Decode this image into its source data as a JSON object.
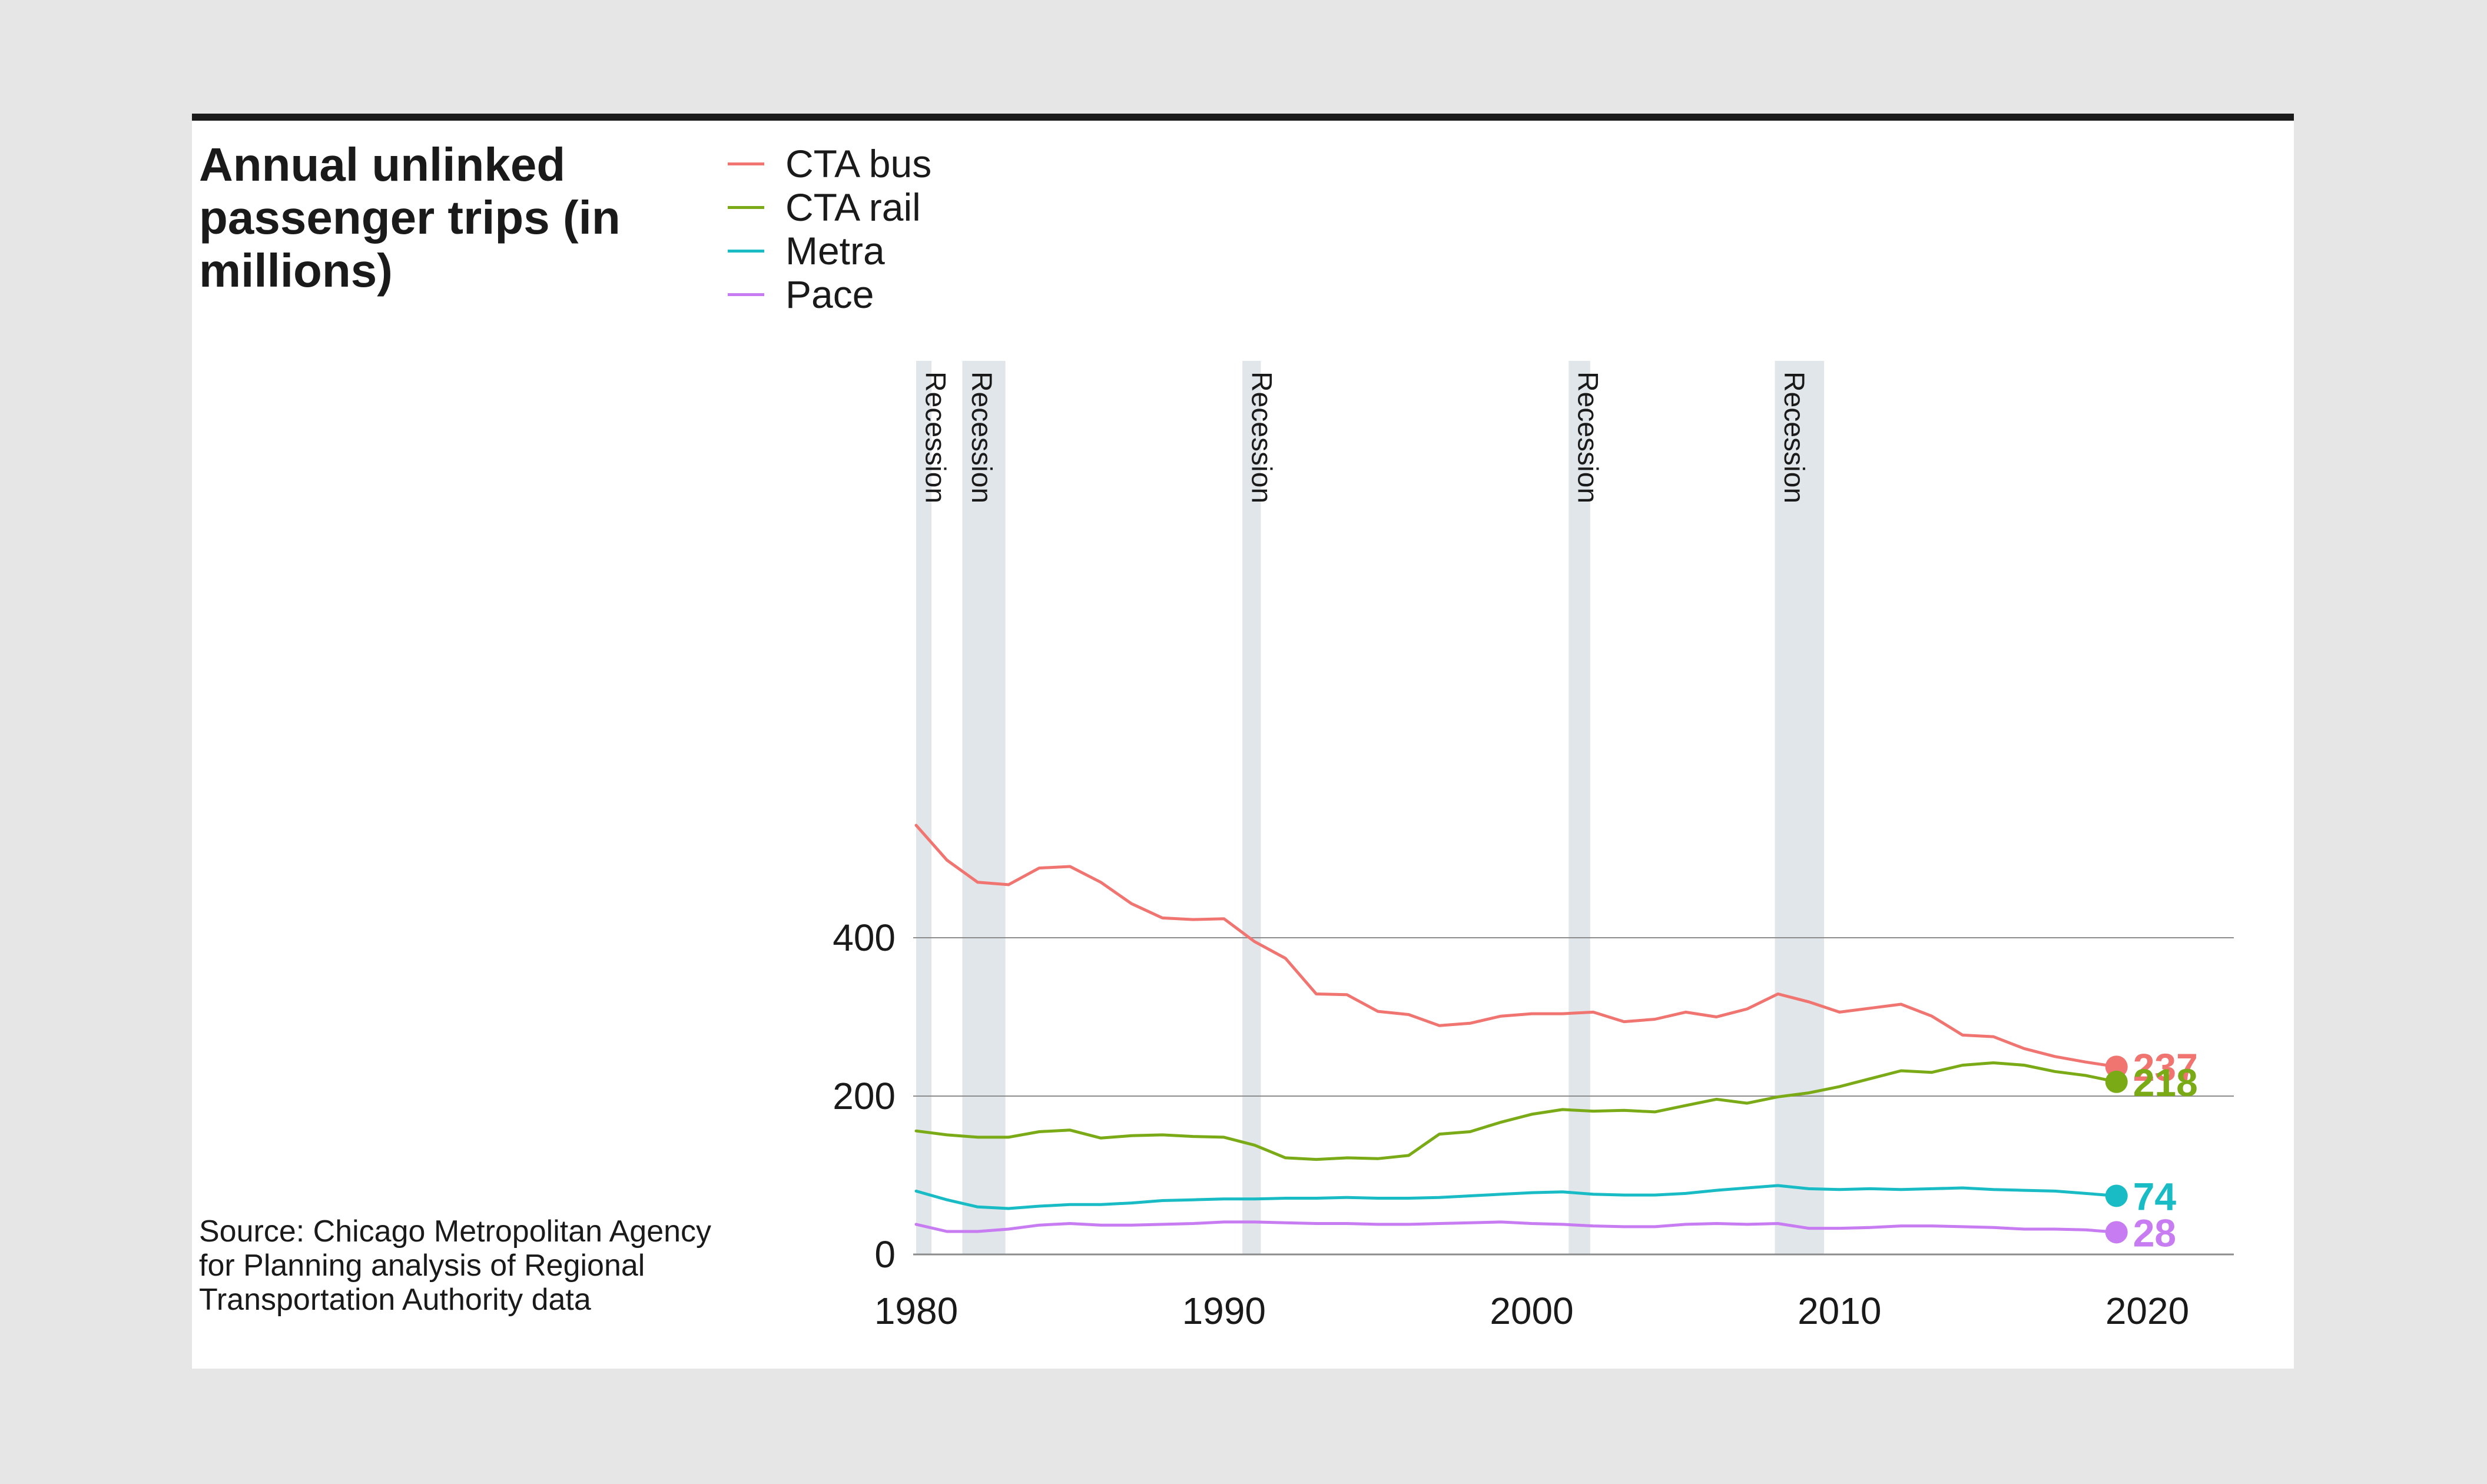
{
  "colors": {
    "CTA bus": "#f07470",
    "CTA rail": "#7aab17",
    "Metra": "#19bcc5",
    "Pace": "#c77cf2",
    "recession": "#e1e6ea",
    "grid": "#8c8c8c",
    "text": "#1a1a1a"
  },
  "chart_data": {
    "type": "line",
    "title": "Annual unlinked passenger trips (in millions)",
    "source": "Source: Chicago Metropolitan Agency for Planning analysis of Regional Transportation Authority data",
    "xlim": [
      1980,
      2020
    ],
    "ylim": [
      0,
      550
    ],
    "yticks": [
      0,
      200,
      400
    ],
    "xticks": [
      1980,
      1990,
      2000,
      2010,
      2020
    ],
    "grid": "horizontal",
    "legend": "top-left",
    "x": [
      1980,
      1981,
      1982,
      1983,
      1984,
      1985,
      1986,
      1987,
      1988,
      1989,
      1990,
      1991,
      1992,
      1993,
      1994,
      1995,
      1996,
      1997,
      1998,
      1999,
      2000,
      2001,
      2002,
      2003,
      2004,
      2005,
      2006,
      2007,
      2008,
      2009,
      2010,
      2011,
      2012,
      2013,
      2014,
      2015,
      2016,
      2017,
      2018,
      2019
    ],
    "series": [
      {
        "name": "CTA bus",
        "values": [
          542,
          498,
          470,
          467,
          488,
          490,
          470,
          443,
          425,
          423,
          424,
          395,
          374,
          329,
          328,
          307,
          303,
          289,
          292,
          301,
          304,
          304,
          306,
          294,
          297,
          306,
          300,
          310,
          329,
          319,
          306,
          311,
          316,
          301,
          277,
          275,
          260,
          250,
          243,
          237
        ]
      },
      {
        "name": "CTA rail",
        "values": [
          156,
          151,
          148,
          148,
          155,
          157,
          147,
          150,
          151,
          149,
          148,
          138,
          122,
          120,
          122,
          121,
          125,
          152,
          155,
          167,
          177,
          183,
          181,
          182,
          180,
          188,
          196,
          191,
          199,
          204,
          212,
          222,
          232,
          230,
          239,
          242,
          239,
          231,
          226,
          218
        ]
      },
      {
        "name": "Metra",
        "values": [
          80,
          69,
          60,
          58,
          61,
          63,
          63,
          65,
          68,
          69,
          70,
          70,
          71,
          71,
          72,
          71,
          71,
          72,
          74,
          76,
          78,
          79,
          76,
          75,
          75,
          77,
          81,
          84,
          87,
          83,
          82,
          83,
          82,
          83,
          84,
          82,
          81,
          80,
          77,
          74
        ]
      },
      {
        "name": "Pace",
        "values": [
          38,
          29,
          29,
          32,
          37,
          39,
          37,
          37,
          38,
          39,
          41,
          41,
          40,
          39,
          39,
          38,
          38,
          39,
          40,
          41,
          39,
          38,
          36,
          35,
          35,
          38,
          39,
          38,
          39,
          33,
          33,
          34,
          36,
          36,
          35,
          34,
          32,
          32,
          31,
          28
        ]
      }
    ],
    "end_labels": [
      {
        "series": "CTA bus",
        "text": "237"
      },
      {
        "series": "CTA rail",
        "text": "218"
      },
      {
        "series": "Metra",
        "text": "74"
      },
      {
        "series": "Pace",
        "text": "28"
      }
    ],
    "recessions": [
      {
        "label": "Recession",
        "start": 1980.0,
        "end": 1980.5
      },
      {
        "label": "Recession",
        "start": 1981.5,
        "end": 1982.9
      },
      {
        "label": "Recession",
        "start": 1990.6,
        "end": 1991.2
      },
      {
        "label": "Recession",
        "start": 2001.2,
        "end": 2001.9
      },
      {
        "label": "Recession",
        "start": 2007.9,
        "end": 2009.5
      }
    ]
  }
}
